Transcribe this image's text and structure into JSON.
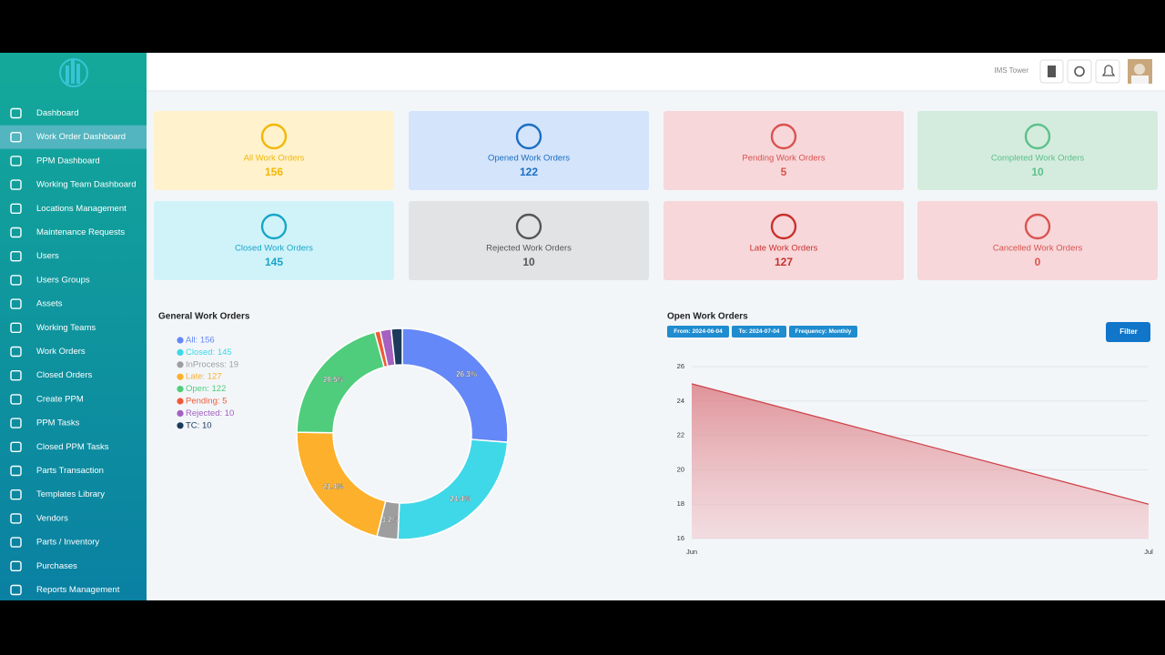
{
  "sidebar": {
    "items": [
      "Dashboard",
      "Work Order Dashboard",
      "PPM Dashboard",
      "Working Team Dashboard",
      "Locations Management",
      "Maintenance Requests",
      "Users",
      "Users Groups",
      "Assets",
      "Working Teams",
      "Work Orders",
      "Closed Orders",
      "Create PPM",
      "PPM Tasks",
      "Closed PPM Tasks",
      "Parts Transaction",
      "Templates Library",
      "Vendors",
      "Parts / Inventory",
      "Purchases",
      "Reports Management"
    ],
    "active": 1
  },
  "header": {
    "site": "IMS Tower"
  },
  "cards": [
    {
      "label": "All Work Orders",
      "value": 156,
      "color": "#f2b705",
      "bg": "#fff2cc"
    },
    {
      "label": "Opened Work Orders",
      "value": 122,
      "color": "#1b6ec2",
      "bg": "#d3e4fb"
    },
    {
      "label": "Pending Work Orders",
      "value": 5,
      "color": "#d9534f",
      "bg": "#f7d7da"
    },
    {
      "label": "Completed Work Orders",
      "value": 10,
      "color": "#5cc08c",
      "bg": "#d4ecdd"
    },
    {
      "label": "Closed Work Orders",
      "value": 145,
      "color": "#17a6c8",
      "bg": "#d0f3fa"
    },
    {
      "label": "Rejected Work Orders",
      "value": 10,
      "color": "#555555",
      "bg": "#e2e3e5"
    },
    {
      "label": "Late Work Orders",
      "value": 127,
      "color": "#c9302c",
      "bg": "#f7d7da"
    },
    {
      "label": "Cancelled Work Orders",
      "value": 0,
      "color": "#d9534f",
      "bg": "#f7d7da"
    }
  ],
  "chart_data": [
    {
      "type": "pie",
      "title": "General Work Orders",
      "categories": [
        "All: 156",
        "Closed: 145",
        "InProcess: 19",
        "Late: 127",
        "Open: 122",
        "Pending: 5",
        "Rejected: 10",
        "TC: 10"
      ],
      "values": [
        156,
        145,
        19,
        127,
        122,
        5,
        10,
        10
      ],
      "value_labels": [
        "26.3%",
        "24.4%",
        "3.2%",
        "21.4%",
        "20.5%",
        null,
        null,
        null
      ],
      "colors": [
        "#6488f7",
        "#3fd8e8",
        "#9e9e9e",
        "#fdb02b",
        "#4fcd7c",
        "#f05a3a",
        "#a461c0",
        "#1b3a5c"
      ]
    },
    {
      "type": "line",
      "title": "Open Work Orders",
      "filters": [
        "From: 2024-06-04",
        "To: 2024-07-04",
        "Frequency: Monthly"
      ],
      "button": "Filter",
      "categories": [
        "Jun",
        "Jul"
      ],
      "values": [
        25,
        18
      ],
      "color": "#d0464c",
      "ylim": [
        16,
        26
      ],
      "yticks": [
        16,
        18,
        20,
        22,
        24,
        26
      ],
      "grid": true
    }
  ]
}
